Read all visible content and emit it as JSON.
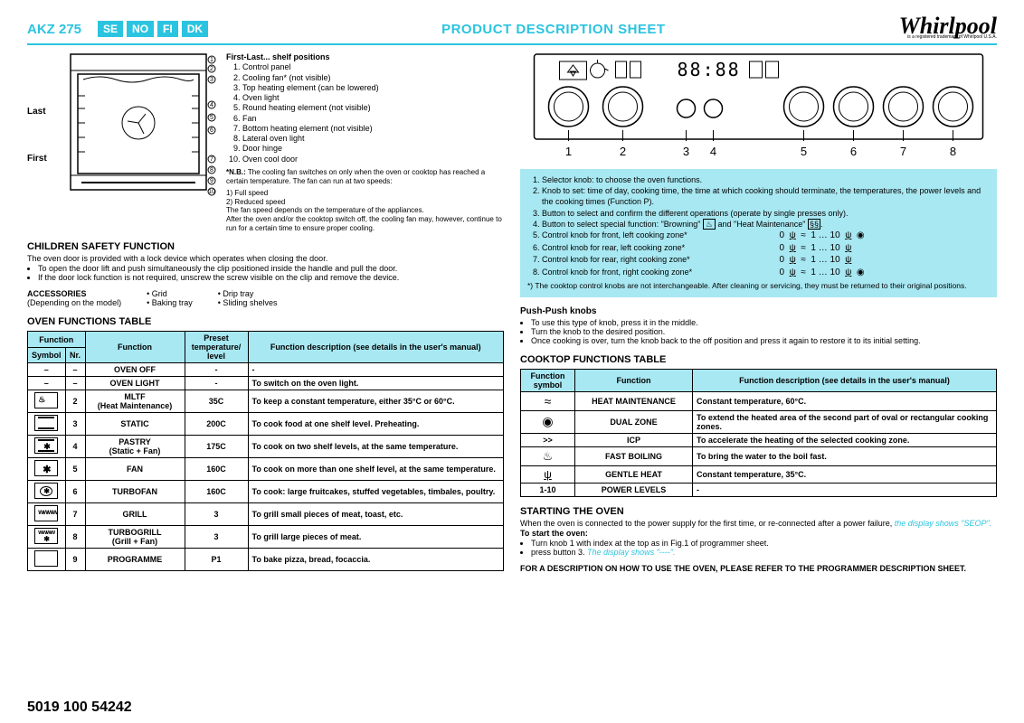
{
  "header": {
    "model": "AKZ 275",
    "langs": [
      "SE",
      "NO",
      "FI",
      "DK"
    ],
    "title": "PRODUCT DESCRIPTION SHEET",
    "brand": "Whirlpool",
    "brand_sub": "is a registered trademark of Whirlpool U.S.A."
  },
  "oven_diagram": {
    "last_label": "Last",
    "first_label": "First"
  },
  "legend": {
    "heading": "First-Last... shelf positions",
    "items": [
      "Control panel",
      "Cooling fan* (not visible)",
      "Top heating element (can be lowered)",
      "Oven light",
      "Round heating element (not visible)",
      "Fan",
      "Bottom heating element (not visible)",
      "Lateral oven light",
      "Door hinge",
      "Oven cool door"
    ],
    "nb_label": "*N.B.:",
    "nb_text": "The cooling fan switches on only when the oven or cooktop has reached a certain temperature. The fan can run at two speeds:",
    "nb_lines": [
      "1) Full speed",
      "2) Reduced speed",
      "The fan speed depends on the temperature of the appliances.",
      "After the oven and/or the cooktop switch off, the cooling fan may, however, continue to run for a certain time to ensure proper cooling."
    ]
  },
  "safety": {
    "heading": "CHILDREN SAFETY FUNCTION",
    "intro": "The oven door is provided with a lock device which operates when closing the door.",
    "bullets": [
      "To open the door lift and push simultaneously the clip positioned inside the handle and pull the door.",
      "If the door lock function is not required, unscrew the screw visible on the clip and remove the device."
    ]
  },
  "accessories": {
    "heading": "ACCESSORIES",
    "sub": "(Depending on the model)",
    "items": [
      "Grid",
      "Baking tray",
      "Drip tray",
      "Sliding shelves"
    ]
  },
  "oven_table": {
    "heading": "OVEN FUNCTIONS TABLE",
    "headers": {
      "func_group": "Function",
      "symbol": "Symbol",
      "nr": "Nr.",
      "func": "Function",
      "preset": "Preset temperature/ level",
      "desc": "Function description\n(see details in the user's manual)"
    },
    "rows": [
      {
        "sym": "–",
        "nr": "–",
        "func": "OVEN OFF",
        "preset": "-",
        "desc": "-"
      },
      {
        "sym": "–",
        "nr": "–",
        "func": "OVEN LIGHT",
        "preset": "-",
        "desc": "To switch on the oven light."
      },
      {
        "sym": "mltf",
        "nr": "2",
        "func": "MLTF\n(Heat Maintenance)",
        "preset": "35C",
        "desc": "To keep a constant temperature, either 35°C or 60°C."
      },
      {
        "sym": "static",
        "nr": "3",
        "func": "STATIC",
        "preset": "200C",
        "desc": "To cook food at one shelf level. Preheating."
      },
      {
        "sym": "pastry",
        "nr": "4",
        "func": "PASTRY\n(Static + Fan)",
        "preset": "175C",
        "desc": "To cook on two shelf levels, at the same temperature."
      },
      {
        "sym": "fan",
        "nr": "5",
        "func": "FAN",
        "preset": "160C",
        "desc": "To cook on more than one shelf level, at the same temperature."
      },
      {
        "sym": "turbo",
        "nr": "6",
        "func": "TURBOFAN",
        "preset": "160C",
        "desc": "To cook: large fruitcakes, stuffed vegetables, timbales, poultry."
      },
      {
        "sym": "grill",
        "nr": "7",
        "func": "GRILL",
        "preset": "3",
        "desc": "To grill small pieces of meat, toast, etc."
      },
      {
        "sym": "turbogrill",
        "nr": "8",
        "func": "TURBOGRILL\n(Grill + Fan)",
        "preset": "3",
        "desc": "To grill large pieces of meat."
      },
      {
        "sym": "prog",
        "nr": "9",
        "func": "PROGRAMME",
        "preset": "P1",
        "desc": "To bake pizza, bread, focaccia."
      }
    ]
  },
  "knob_desc": {
    "items": [
      "Selector knob: to choose the oven functions.",
      "Knob to set: time of day, cooking time, the time at which cooking should terminate, the temperatures, the power levels and the cooking times (Function P).",
      "Button to select and confirm the different operations (operate by single presses only).",
      "Button to select special function: \"Browning\"  and \"Heat Maintenance\" .",
      "Control knob for front, left cooking zone*",
      "Control knob for rear, left cooking zone*",
      "Control knob for rear, right cooking zone*",
      "Control knob for front, right cooking zone*"
    ],
    "tail": "0  1 … 10  ",
    "footnote": "*) The cooktop control knobs are not interchangeable. After cleaning or servicing, they must be returned to their original positions."
  },
  "push": {
    "heading": "Push-Push knobs",
    "bullets": [
      "To use this type of knob, press it in the middle.",
      "Turn the knob to the desired position.",
      "Once cooking is over, turn the knob back to the off position and press it again to restore it to its initial setting."
    ]
  },
  "cooktop_table": {
    "heading": "COOKTOP FUNCTIONS TABLE",
    "headers": {
      "symbol": "Function symbol",
      "func": "Function",
      "desc": "Function description\n(see details in the user's manual)"
    },
    "rows": [
      {
        "sym": "≈",
        "func": "HEAT MAINTENANCE",
        "desc": "Constant temperature, 60°C."
      },
      {
        "sym": "◉",
        "func": "DUAL ZONE",
        "desc": "To extend the heated area of the second part of oval or rectangular cooking zones."
      },
      {
        "sym": ">>",
        "func": "ICP",
        "desc": "To accelerate the heating of the selected cooking zone."
      },
      {
        "sym": "fb",
        "func": "FAST BOILING",
        "desc": "To bring the water to the boil fast."
      },
      {
        "sym": "gh",
        "func": "GENTLE HEAT",
        "desc": "Constant temperature, 35°C."
      },
      {
        "sym": "1-10",
        "func": "POWER LEVELS",
        "desc": "-"
      }
    ]
  },
  "starting": {
    "heading": "STARTING THE OVEN",
    "line1a": "When the oven is connected to the power supply for the first time, or re-connected after a power failure, ",
    "line1b": "the display shows \"SEOP\".",
    "sub": "To start the oven:",
    "bullets": [
      {
        "a": "Turn knob 1 with index at the top as in Fig.1 of programmer sheet.",
        "b": ""
      },
      {
        "a": "press button 3. ",
        "b": "The display shows \"----\"."
      }
    ],
    "footer": "FOR A DESCRIPTION ON HOW TO USE THE OVEN, PLEASE REFER TO THE PROGRAMMER DESCRIPTION SHEET."
  },
  "partnum": "5019 100 54242"
}
